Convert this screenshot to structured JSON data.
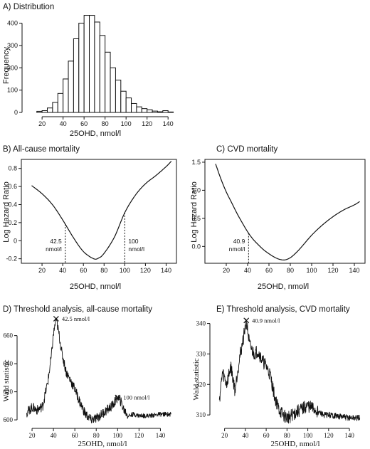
{
  "chart_data": [
    {
      "id": "A",
      "type": "bar",
      "title": "A) Distribution",
      "xlabel": "25OHD, nmol/l",
      "ylabel": "Frequency",
      "xlim": [
        5,
        148
      ],
      "ylim": [
        0,
        440
      ],
      "xticks": [
        20,
        40,
        60,
        80,
        100,
        120,
        140
      ],
      "yticks": [
        0,
        100,
        200,
        300,
        400
      ],
      "bin_width": 5,
      "bins_start": [
        15,
        20,
        25,
        30,
        35,
        40,
        45,
        50,
        55,
        60,
        65,
        70,
        75,
        80,
        85,
        90,
        95,
        100,
        105,
        110,
        115,
        120,
        125,
        130,
        135,
        140
      ],
      "values": [
        5,
        8,
        20,
        45,
        85,
        150,
        230,
        330,
        400,
        435,
        435,
        405,
        345,
        270,
        200,
        145,
        95,
        65,
        40,
        25,
        17,
        12,
        6,
        3,
        8,
        2
      ]
    },
    {
      "id": "B",
      "type": "line",
      "title": "B) All-cause mortality",
      "xlabel": "25OHD, nmol/l",
      "ylabel": "Log Hazard Ratio",
      "xlim": [
        0,
        150
      ],
      "ylim": [
        -0.25,
        0.9
      ],
      "xticks": [
        20,
        40,
        60,
        80,
        100,
        120,
        140
      ],
      "yticks": [
        -0.2,
        0.0,
        0.2,
        0.4,
        0.6,
        0.8
      ],
      "x": [
        10,
        20,
        30,
        40,
        50,
        60,
        70,
        75,
        80,
        90,
        100,
        110,
        120,
        130,
        140,
        145
      ],
      "y": [
        0.61,
        0.52,
        0.4,
        0.23,
        0.04,
        -0.12,
        -0.2,
        -0.19,
        -0.14,
        0.04,
        0.31,
        0.5,
        0.63,
        0.72,
        0.82,
        0.88
      ],
      "thresholds": [
        {
          "x": 42.5,
          "line1": "42.5",
          "line2": "nmol/l",
          "side": "left"
        },
        {
          "x": 100,
          "line1": "100",
          "line2": "nmol/l",
          "side": "right"
        }
      ]
    },
    {
      "id": "C",
      "type": "line",
      "title": "C) CVD mortality",
      "xlabel": "25OHD, nmol/l",
      "ylabel": "Log Hazard Ratio",
      "xlim": [
        0,
        150
      ],
      "ylim": [
        -0.3,
        1.55
      ],
      "xticks": [
        20,
        40,
        60,
        80,
        100,
        120,
        140
      ],
      "yticks": [
        0.0,
        0.5,
        1.0,
        1.5
      ],
      "yticklabels": [
        "0.0",
        "0.5",
        "1.0",
        "1.5"
      ],
      "x": [
        10,
        15,
        20,
        25,
        30,
        35,
        40,
        45,
        50,
        55,
        60,
        65,
        70,
        75,
        80,
        85,
        90,
        100,
        110,
        120,
        130,
        140,
        145
      ],
      "y": [
        1.47,
        1.2,
        0.97,
        0.78,
        0.59,
        0.42,
        0.26,
        0.13,
        0.03,
        -0.06,
        -0.13,
        -0.19,
        -0.23,
        -0.24,
        -0.2,
        -0.12,
        -0.02,
        0.2,
        0.38,
        0.53,
        0.65,
        0.74,
        0.8
      ],
      "thresholds": [
        {
          "x": 40.9,
          "line1": "40.9",
          "line2": "nmol/l",
          "side": "left"
        }
      ]
    },
    {
      "id": "D",
      "type": "line",
      "title": "D) Threshold analysis, all-cause mortality",
      "xlabel": "25OHD, nmol/l",
      "ylabel": "Wald statistic",
      "xlim": [
        10,
        155
      ],
      "ylim": [
        597,
        673
      ],
      "xticks": [
        20,
        40,
        60,
        80,
        100,
        120,
        140
      ],
      "yticks": [
        600,
        620,
        640,
        660
      ],
      "x": [
        15,
        20,
        25,
        30,
        35,
        38,
        40,
        42.5,
        45,
        48,
        52,
        56,
        60,
        65,
        70,
        75,
        80,
        85,
        90,
        95,
        100,
        103,
        106,
        110,
        115,
        120,
        130,
        140,
        150
      ],
      "y": [
        605,
        609,
        607,
        610,
        628,
        645,
        661,
        672,
        662,
        647,
        634,
        628,
        622,
        612,
        604,
        600,
        601,
        604,
        607,
        610,
        616,
        613,
        607,
        603,
        604,
        603,
        603,
        604,
        604
      ],
      "noise": 3.5,
      "markers": [
        {
          "x": 42.5,
          "y": 672,
          "label": "42.5 nmol/l"
        },
        {
          "x": 100,
          "y": 616,
          "label": "100 nmol/l"
        }
      ]
    },
    {
      "id": "E",
      "type": "line",
      "title": "E) Threshold analysis, CVD mortality",
      "xlabel": "25OHD, nmol/l",
      "ylabel": "Wald statistic",
      "xlim": [
        10,
        155
      ],
      "ylim": [
        307,
        342
      ],
      "xticks": [
        20,
        40,
        60,
        80,
        100,
        120,
        140
      ],
      "yticks": [
        310,
        320,
        330,
        340
      ],
      "x": [
        15,
        18,
        22,
        26,
        30,
        34,
        38,
        40.9,
        44,
        48,
        52,
        56,
        60,
        64,
        68,
        72,
        76,
        80,
        85,
        90,
        95,
        100,
        105,
        110,
        115,
        120,
        130,
        140,
        150
      ],
      "y": [
        315,
        324,
        320,
        326,
        318,
        328,
        335,
        341,
        333,
        330,
        331,
        328,
        326,
        323,
        316,
        312,
        310,
        309,
        310,
        311,
        312,
        313,
        312,
        311,
        310,
        310,
        309.5,
        309,
        309
      ],
      "noise": 2.2,
      "markers": [
        {
          "x": 40.9,
          "y": 341,
          "label": "40.9 nmol/l"
        }
      ]
    }
  ]
}
